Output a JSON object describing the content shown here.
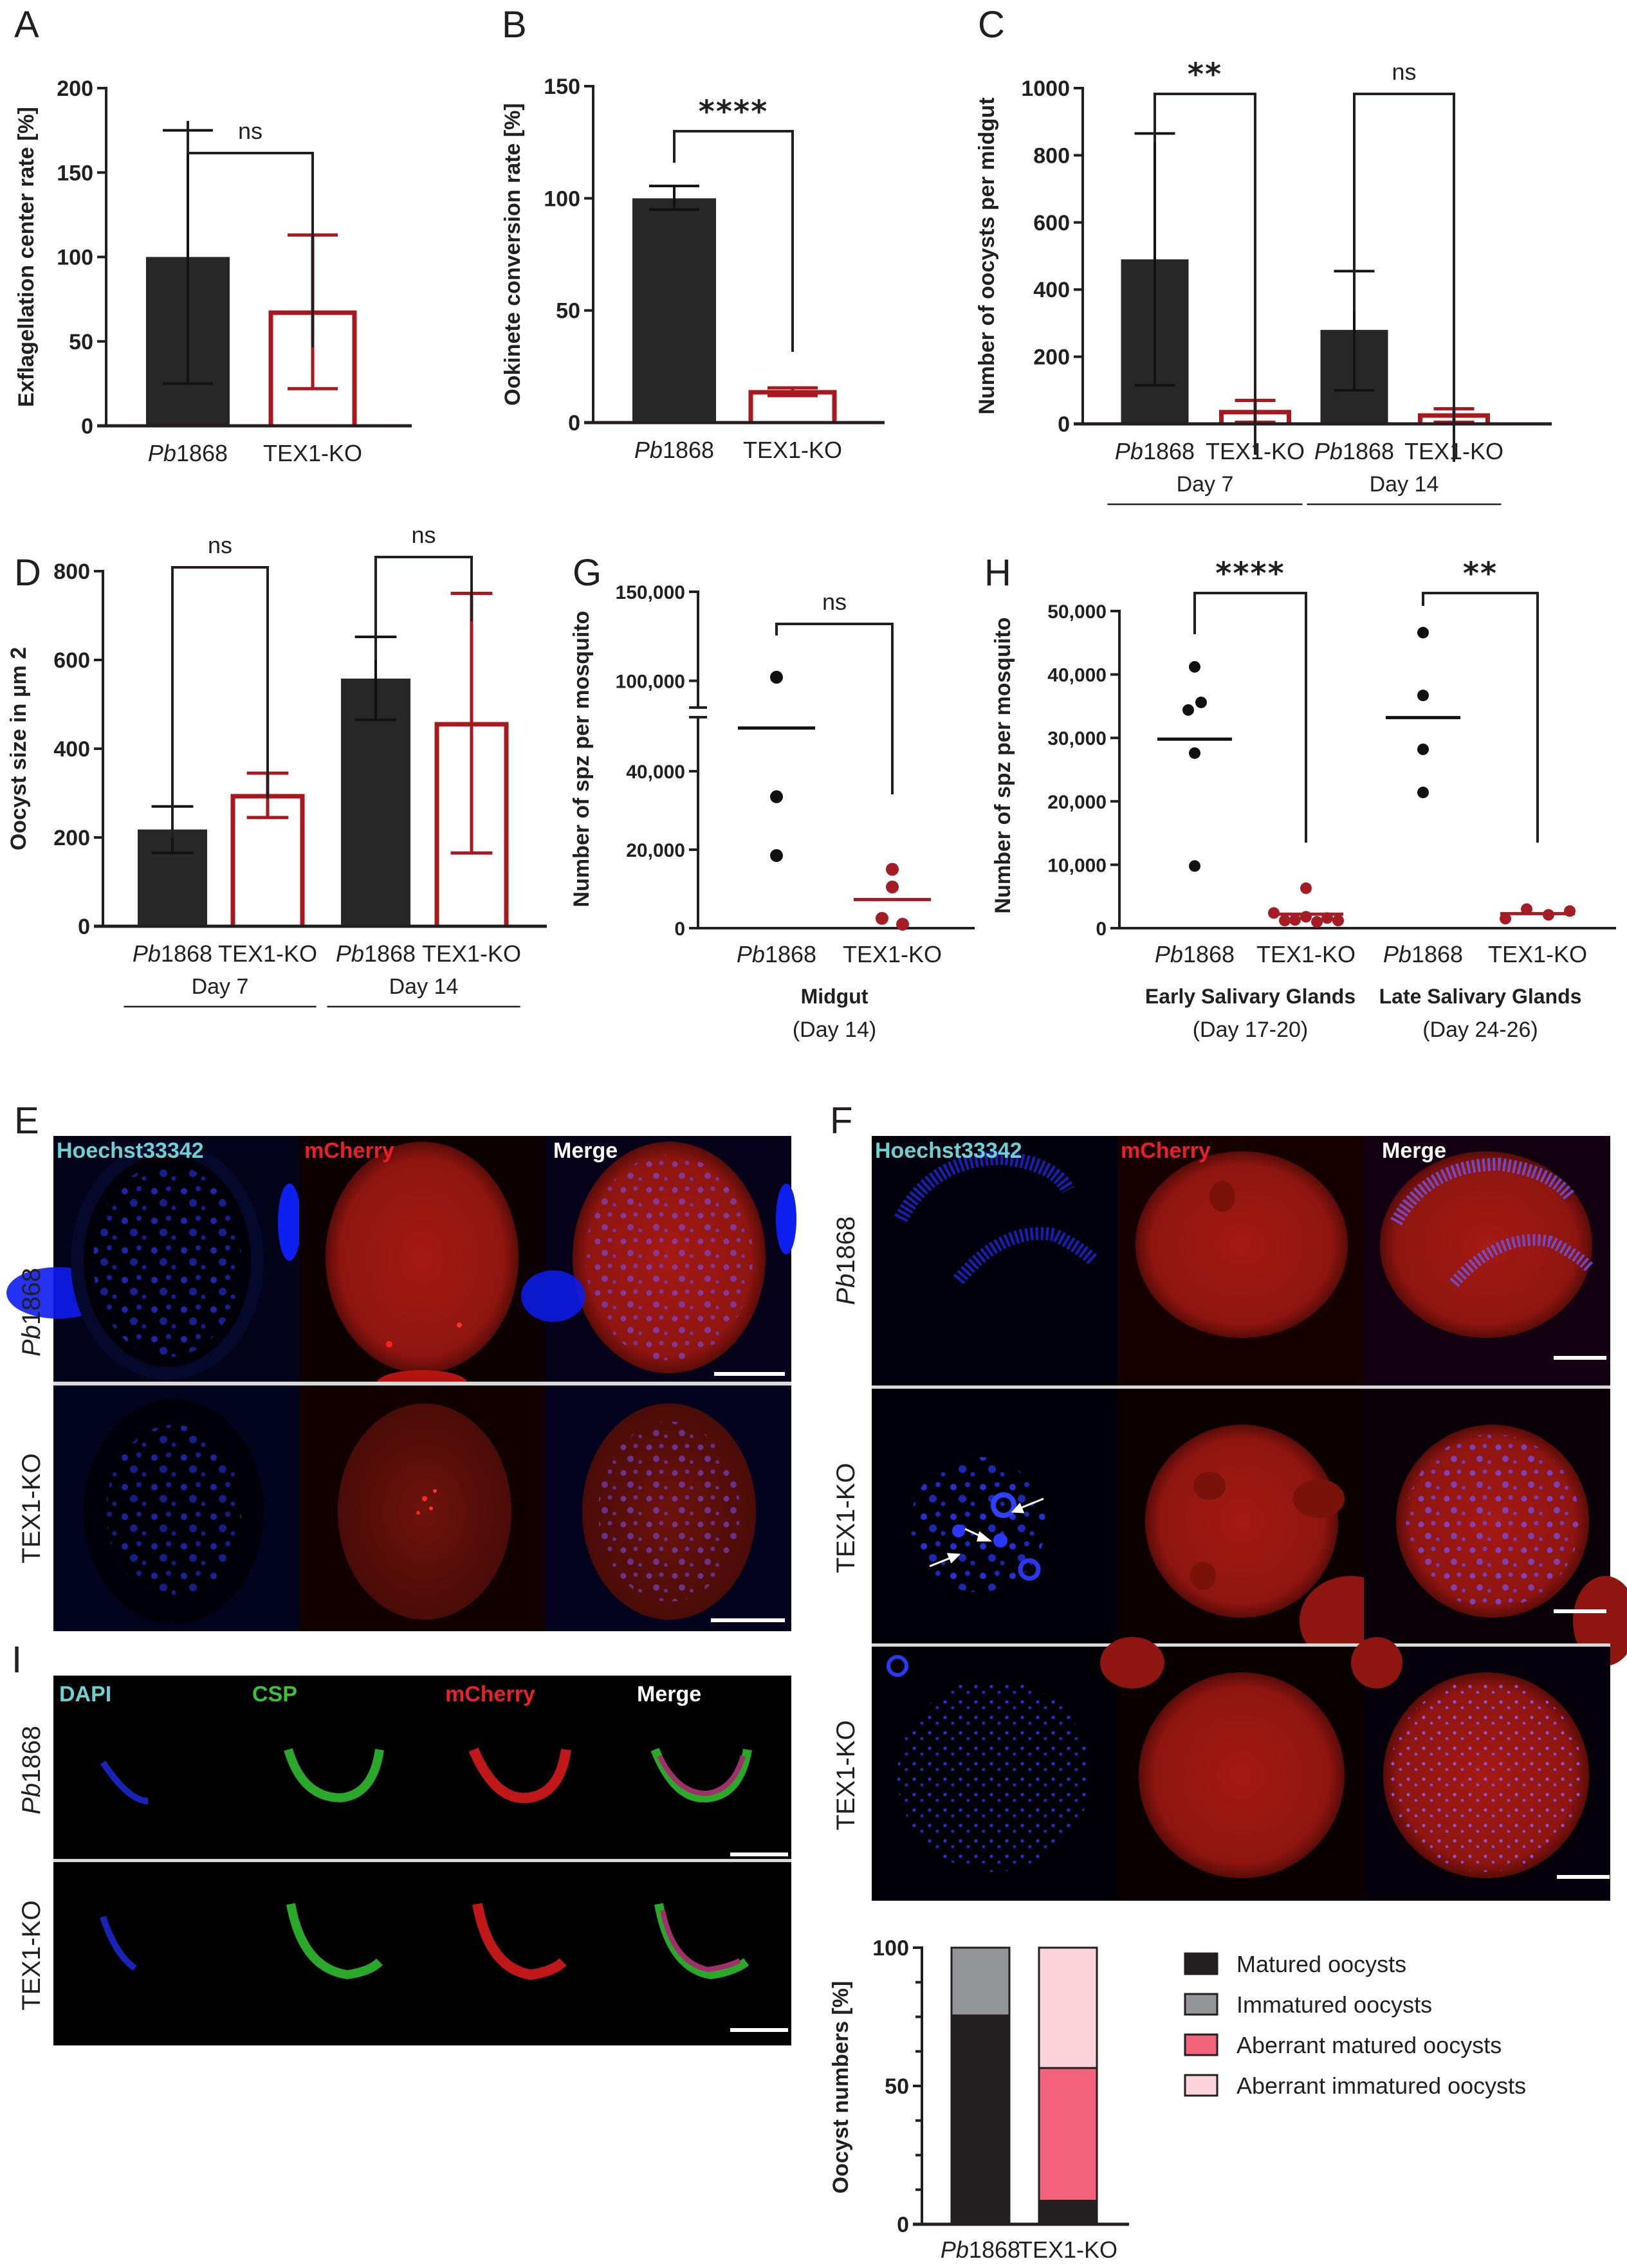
{
  "colors": {
    "wt_bar": "#272727",
    "ko_red": "#a8191f",
    "ko_dot": "#a51c24",
    "axis": "#231f20",
    "matured": "#231f20",
    "immatured": "#939598",
    "aberrant_matured": "#f2627b",
    "aberrant_immatured": "#fbd3da",
    "hoechst_label": "#6fd0d0",
    "csp_label": "#3cc13c",
    "mcherry_label": "#e8202a",
    "merge_label": "#ffffff"
  },
  "labels": {
    "wt": "Pb1868",
    "wt_italic": "Pb",
    "wt_num": "1868",
    "ko": "TEX1-KO"
  },
  "chart_data": [
    {
      "id": "A",
      "type": "bar",
      "title": "",
      "ylabel": "Exflagellation center rate  [%]",
      "xlabel": "",
      "categories": [
        "Pb1868",
        "TEX1-KO"
      ],
      "values": [
        100,
        67
      ],
      "error_low": [
        25,
        22
      ],
      "error_high": [
        175,
        113
      ],
      "ylim": [
        0,
        200
      ],
      "yticks": [
        0,
        50,
        100,
        150,
        200
      ],
      "significance": [
        {
          "from": 0,
          "to": 1,
          "label": "ns"
        }
      ],
      "grid": false
    },
    {
      "id": "B",
      "type": "bar",
      "title": "",
      "ylabel": "Ookinete conversion rate [%]",
      "xlabel": "",
      "categories": [
        "Pb1868",
        "TEX1-KO"
      ],
      "values": [
        100,
        13.5
      ],
      "error_low": [
        95,
        12
      ],
      "error_high": [
        105.5,
        15.5
      ],
      "ylim": [
        0,
        150
      ],
      "yticks": [
        0,
        50,
        100,
        150
      ],
      "significance": [
        {
          "from": 0,
          "to": 1,
          "label": "****"
        }
      ],
      "grid": false
    },
    {
      "id": "C",
      "type": "bar",
      "title": "",
      "ylabel": "Number of oocysts per midgut",
      "xlabel": "",
      "categories": [
        "Pb1868",
        "TEX1-KO",
        "Pb1868",
        "TEX1-KO"
      ],
      "groups": [
        "Day 7",
        "Day 14"
      ],
      "values": [
        490,
        35,
        280,
        25
      ],
      "error_low": [
        115,
        5,
        100,
        5
      ],
      "error_high": [
        865,
        70,
        455,
        45
      ],
      "ylim": [
        0,
        1000
      ],
      "yticks": [
        0,
        200,
        400,
        600,
        800,
        1000
      ],
      "significance": [
        {
          "from": 0,
          "to": 1,
          "label": "**"
        },
        {
          "from": 2,
          "to": 3,
          "label": "ns"
        }
      ],
      "grid": false
    },
    {
      "id": "D",
      "type": "bar",
      "title": "",
      "ylabel": "Oocyst size in µm 2",
      "xlabel": "",
      "categories": [
        "Pb1868",
        "TEX1-KO",
        "Pb1868",
        "TEX1-KO"
      ],
      "groups": [
        "Day 7",
        "Day 14"
      ],
      "values": [
        218,
        293,
        558,
        455
      ],
      "error_low": [
        165,
        245,
        465,
        165
      ],
      "error_high": [
        270,
        345,
        652,
        750
      ],
      "ylim": [
        0,
        800
      ],
      "yticks": [
        0,
        200,
        400,
        600,
        800
      ],
      "significance": [
        {
          "from": 0,
          "to": 1,
          "label": "ns"
        },
        {
          "from": 2,
          "to": 3,
          "label": "ns"
        }
      ],
      "grid": false
    },
    {
      "id": "G",
      "type": "scatter",
      "title": "",
      "ylabel": "Number of spz per mosquito",
      "xlabel": "Midgut",
      "xsublabel": "(Day 14)",
      "categories": [
        "Pb1868",
        "TEX1-KO"
      ],
      "points": [
        [
          102000,
          33500,
          18500
        ],
        [
          15000,
          10500,
          2500,
          1000
        ]
      ],
      "means": [
        51000,
        7300
      ],
      "ylim": [
        0,
        150000
      ],
      "yticks": [
        "0",
        "20,000",
        "40,000",
        "100,000",
        "150,000"
      ],
      "axis_break": [
        55000,
        85000
      ],
      "significance": [
        {
          "from": 0,
          "to": 1,
          "label": "ns"
        }
      ],
      "grid": false
    },
    {
      "id": "H",
      "type": "scatter",
      "title": "",
      "ylabel": "Number of spz per mosquito",
      "xlabel": "",
      "categories": [
        "Pb1868",
        "TEX1-KO",
        "Pb1868",
        "TEX1-KO"
      ],
      "groups": [
        "Early Salivary Glands",
        "Late Salivary Glands"
      ],
      "group_sublabels": [
        "(Day 17-20)",
        "(Day 24-26)"
      ],
      "points": [
        [
          41200,
          35600,
          34400,
          27600,
          9800
        ],
        [
          6300,
          2400,
          1200,
          1300,
          1800,
          1000,
          1600,
          1200
        ],
        [
          46600,
          36700,
          28200,
          21400
        ],
        [
          1500,
          3000,
          2100,
          2700
        ]
      ],
      "means": [
        29800,
        2200,
        33200,
        2300
      ],
      "ylim": [
        0,
        50000
      ],
      "yticks": [
        "0",
        "10,000",
        "20,000",
        "30,000",
        "40,000",
        "50,000"
      ],
      "significance": [
        {
          "from": 0,
          "to": 1,
          "label": "****"
        },
        {
          "from": 2,
          "to": 3,
          "label": "**"
        }
      ],
      "grid": false
    },
    {
      "id": "F-quant",
      "type": "bar",
      "stacked": true,
      "title": "",
      "ylabel": "Oocyst numbers [%]",
      "xlabel": "",
      "categories": [
        "Pb1868",
        "TEX1-KO"
      ],
      "series": [
        {
          "name": "Matured oocysts",
          "values": [
            75.5,
            8.5
          ]
        },
        {
          "name": "Immatured oocysts",
          "values": [
            24.5,
            0
          ]
        },
        {
          "name": "Aberrant matured oocysts",
          "values": [
            0,
            48
          ]
        },
        {
          "name": "Aberrant immatured oocysts",
          "values": [
            0,
            43.5
          ]
        }
      ],
      "ylim": [
        0,
        100
      ],
      "yticks": [
        0,
        50,
        100
      ],
      "legend_position": "right",
      "grid": false
    }
  ],
  "microscopy": {
    "E": {
      "channels": [
        "Hoechst33342",
        "mCherry",
        "Merge"
      ],
      "rows": [
        "Pb1868",
        "TEX1-KO"
      ]
    },
    "F": {
      "channels": [
        "Hoechst33342",
        "mCherry",
        "Merge"
      ],
      "rows": [
        "Pb1868",
        "TEX1-KO",
        "TEX1-KO"
      ]
    },
    "I": {
      "channels": [
        "DAPI",
        "CSP",
        "mCherry",
        "Merge"
      ],
      "rows": [
        "Pb1868",
        "TEX1-KO"
      ]
    }
  },
  "panel_letters": [
    "A",
    "B",
    "C",
    "D",
    "G",
    "H",
    "E",
    "F",
    "I"
  ]
}
